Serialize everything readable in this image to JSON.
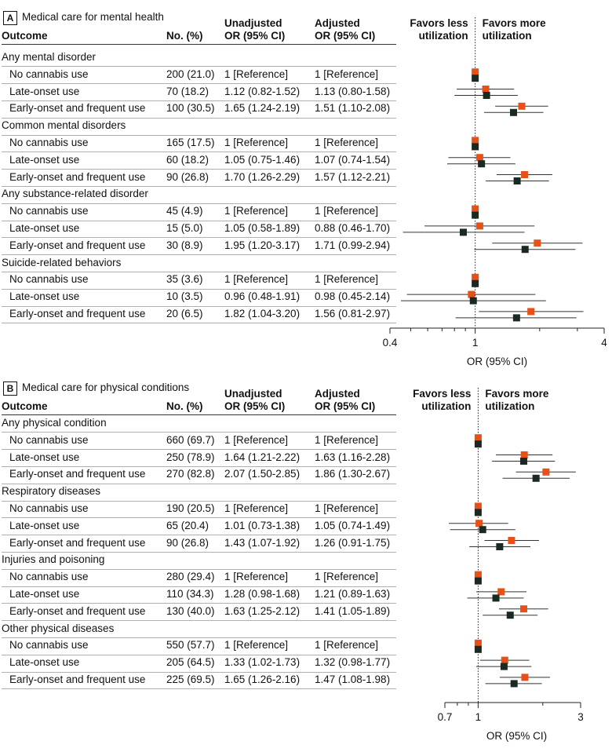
{
  "colors": {
    "unadjusted": "#e8501a",
    "adjusted": "#1a2a22",
    "ci_line": "#333333"
  },
  "chart_data": [
    {
      "type": "forest",
      "panel_label": "A",
      "title": "Medical care for mental health",
      "column_headers": {
        "outcome": "Outcome",
        "n": "No. (%)",
        "unadjusted": [
          "Unadjusted",
          "OR (95% CI)"
        ],
        "adjusted": [
          "Adjusted",
          "OR (95% CI)"
        ]
      },
      "favors_left": [
        "Favors less",
        "utilization"
      ],
      "favors_right": [
        "Favors more",
        "utilization"
      ],
      "x_scale": "log",
      "xlim": [
        0.4,
        4
      ],
      "x_ticks": [
        0.4,
        1,
        4
      ],
      "xlabel": "OR (95% CI)",
      "reference_line": 1,
      "series": [
        {
          "key": "unadjusted"
        },
        {
          "key": "adjusted"
        }
      ],
      "groups": [
        {
          "name": "Any mental disorder",
          "rows": [
            {
              "label": "No cannabis use",
              "n": "200 (21.0)",
              "unadj": "1 [Reference]",
              "adj": "1 [Reference]",
              "u": [
                1,
                1,
                1
              ],
              "a": [
                1,
                1,
                1
              ]
            },
            {
              "label": "Late-onset use",
              "n": "70 (18.2)",
              "unadj": "1.12 (0.82-1.52)",
              "adj": "1.13 (0.80-1.58)",
              "u": [
                1.12,
                0.82,
                1.52
              ],
              "a": [
                1.13,
                0.8,
                1.58
              ]
            },
            {
              "label": "Early-onset and frequent use",
              "n": "100 (30.5)",
              "unadj": "1.65 (1.24-2.19)",
              "adj": "1.51 (1.10-2.08)",
              "u": [
                1.65,
                1.24,
                2.19
              ],
              "a": [
                1.51,
                1.1,
                2.08
              ]
            }
          ]
        },
        {
          "name": "Common mental disorders",
          "rows": [
            {
              "label": "No cannabis use",
              "n": "165 (17.5)",
              "unadj": "1 [Reference]",
              "adj": "1 [Reference]",
              "u": [
                1,
                1,
                1
              ],
              "a": [
                1,
                1,
                1
              ]
            },
            {
              "label": "Late-onset use",
              "n": "60 (18.2)",
              "unadj": "1.05 (0.75-1.46)",
              "adj": "1.07 (0.74-1.54)",
              "u": [
                1.05,
                0.75,
                1.46
              ],
              "a": [
                1.07,
                0.74,
                1.54
              ]
            },
            {
              "label": "Early-onset and frequent use",
              "n": "90 (26.8)",
              "unadj": "1.70 (1.26-2.29)",
              "adj": "1.57 (1.12-2.21)",
              "u": [
                1.7,
                1.26,
                2.29
              ],
              "a": [
                1.57,
                1.12,
                2.21
              ]
            }
          ]
        },
        {
          "name": "Any substance-related disorder",
          "rows": [
            {
              "label": "No cannabis use",
              "n": "45 (4.9)",
              "unadj": "1 [Reference]",
              "adj": "1 [Reference]",
              "u": [
                1,
                1,
                1
              ],
              "a": [
                1,
                1,
                1
              ]
            },
            {
              "label": "Late-onset use",
              "n": "15 (5.0)",
              "unadj": "1.05 (0.58-1.89)",
              "adj": "0.88 (0.46-1.70)",
              "u": [
                1.05,
                0.58,
                1.89
              ],
              "a": [
                0.88,
                0.46,
                1.7
              ]
            },
            {
              "label": "Early-onset and frequent use",
              "n": "30 (8.9)",
              "unadj": "1.95 (1.20-3.17)",
              "adj": "1.71 (0.99-2.94)",
              "u": [
                1.95,
                1.2,
                3.17
              ],
              "a": [
                1.71,
                0.99,
                2.94
              ]
            }
          ]
        },
        {
          "name": "Suicide-related behaviors",
          "rows": [
            {
              "label": "No cannabis use",
              "n": "35 (3.6)",
              "unadj": "1 [Reference]",
              "adj": "1 [Reference]",
              "u": [
                1,
                1,
                1
              ],
              "a": [
                1,
                1,
                1
              ]
            },
            {
              "label": "Late-onset use",
              "n": "10 (3.5)",
              "unadj": "0.96 (0.48-1.91)",
              "adj": "0.98 (0.45-2.14)",
              "u": [
                0.96,
                0.48,
                1.91
              ],
              "a": [
                0.98,
                0.45,
                2.14
              ]
            },
            {
              "label": "Early-onset and frequent use",
              "n": "20 (6.5)",
              "unadj": "1.82 (1.04-3.20)",
              "adj": "1.56 (0.81-2.97)",
              "u": [
                1.82,
                1.04,
                3.2
              ],
              "a": [
                1.56,
                0.81,
                2.97
              ]
            }
          ]
        }
      ]
    },
    {
      "type": "forest",
      "panel_label": "B",
      "title": "Medical care for physical conditions",
      "column_headers": {
        "outcome": "Outcome",
        "n": "No. (%)",
        "unadjusted": [
          "Unadjusted",
          "OR (95% CI)"
        ],
        "adjusted": [
          "Adjusted",
          "OR (95% CI)"
        ]
      },
      "favors_left": [
        "Favors less",
        "utilization"
      ],
      "favors_right": [
        "Favors more",
        "utilization"
      ],
      "x_scale": "log",
      "xlim": [
        0.7,
        3
      ],
      "x_ticks": [
        0.7,
        1,
        3
      ],
      "xlabel": "OR (95% CI)",
      "reference_line": 1,
      "series": [
        {
          "key": "unadjusted"
        },
        {
          "key": "adjusted"
        }
      ],
      "groups": [
        {
          "name": "Any physical condition",
          "rows": [
            {
              "label": "No cannabis use",
              "n": "660 (69.7)",
              "unadj": "1 [Reference]",
              "adj": "1 [Reference]",
              "u": [
                1,
                1,
                1
              ],
              "a": [
                1,
                1,
                1
              ]
            },
            {
              "label": "Late-onset use",
              "n": "250 (78.9)",
              "unadj": "1.64 (1.21-2.22)",
              "adj": "1.63 (1.16-2.28)",
              "u": [
                1.64,
                1.21,
                2.22
              ],
              "a": [
                1.63,
                1.16,
                2.28
              ]
            },
            {
              "label": "Early-onset and frequent use",
              "n": "270 (82.8)",
              "unadj": "2.07 (1.50-2.85)",
              "adj": "1.86 (1.30-2.67)",
              "u": [
                2.07,
                1.5,
                2.85
              ],
              "a": [
                1.86,
                1.3,
                2.67
              ]
            }
          ]
        },
        {
          "name": "Respiratory diseases",
          "rows": [
            {
              "label": "No cannabis use",
              "n": "190 (20.5)",
              "unadj": "1 [Reference]",
              "adj": "1 [Reference]",
              "u": [
                1,
                1,
                1
              ],
              "a": [
                1,
                1,
                1
              ]
            },
            {
              "label": "Late-onset use",
              "n": "65 (20.4)",
              "unadj": "1.01 (0.73-1.38)",
              "adj": "1.05 (0.74-1.49)",
              "u": [
                1.01,
                0.73,
                1.38
              ],
              "a": [
                1.05,
                0.74,
                1.49
              ]
            },
            {
              "label": "Early-onset and frequent use",
              "n": "90 (26.8)",
              "unadj": "1.43 (1.07-1.92)",
              "adj": "1.26 (0.91-1.75)",
              "u": [
                1.43,
                1.07,
                1.92
              ],
              "a": [
                1.26,
                0.91,
                1.75
              ]
            }
          ]
        },
        {
          "name": "Injuries and poisoning",
          "rows": [
            {
              "label": "No cannabis use",
              "n": "280 (29.4)",
              "unadj": "1 [Reference]",
              "adj": "1 [Reference]",
              "u": [
                1,
                1,
                1
              ],
              "a": [
                1,
                1,
                1
              ]
            },
            {
              "label": "Late-onset use",
              "n": "110 (34.3)",
              "unadj": "1.28 (0.98-1.68)",
              "adj": "1.21 (0.89-1.63)",
              "u": [
                1.28,
                0.98,
                1.68
              ],
              "a": [
                1.21,
                0.89,
                1.63
              ]
            },
            {
              "label": "Early-onset and frequent use",
              "n": "130 (40.0)",
              "unadj": "1.63 (1.25-2.12)",
              "adj": "1.41 (1.05-1.89)",
              "u": [
                1.63,
                1.25,
                2.12
              ],
              "a": [
                1.41,
                1.05,
                1.89
              ]
            }
          ]
        },
        {
          "name": "Other physical diseases",
          "rows": [
            {
              "label": "No cannabis use",
              "n": "550 (57.7)",
              "unadj": "1 [Reference]",
              "adj": "1 [Reference]",
              "u": [
                1,
                1,
                1
              ],
              "a": [
                1,
                1,
                1
              ]
            },
            {
              "label": "Late-onset use",
              "n": "205 (64.5)",
              "unadj": "1.33 (1.02-1.73)",
              "adj": "1.32 (0.98-1.77)",
              "u": [
                1.33,
                1.02,
                1.73
              ],
              "a": [
                1.32,
                0.98,
                1.77
              ]
            },
            {
              "label": "Early-onset and frequent use",
              "n": "225 (69.5)",
              "unadj": "1.65 (1.26-2.16)",
              "adj": "1.47 (1.08-1.98)",
              "u": [
                1.65,
                1.26,
                2.16
              ],
              "a": [
                1.47,
                1.08,
                1.98
              ]
            }
          ]
        }
      ]
    }
  ]
}
